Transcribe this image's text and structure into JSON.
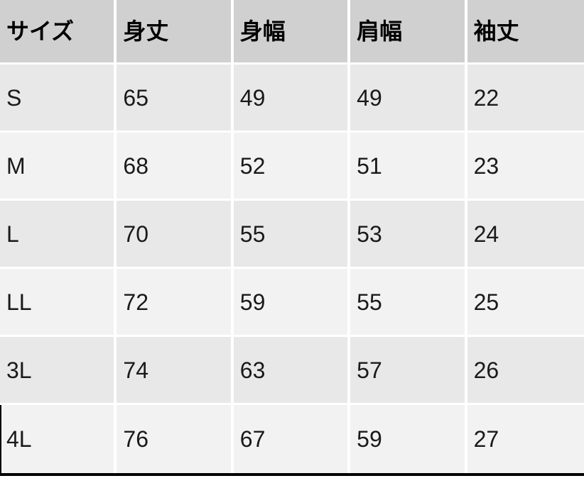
{
  "chart_data": {
    "type": "table",
    "columns": [
      "サイズ",
      "身丈",
      "身幅",
      "肩幅",
      "袖丈"
    ],
    "rows": [
      {
        "size": "S",
        "values": [
          65,
          49,
          49,
          22
        ]
      },
      {
        "size": "M",
        "values": [
          68,
          52,
          51,
          23
        ]
      },
      {
        "size": "L",
        "values": [
          70,
          55,
          53,
          24
        ]
      },
      {
        "size": "LL",
        "values": [
          72,
          59,
          55,
          25
        ]
      },
      {
        "size": "3L",
        "values": [
          74,
          63,
          57,
          26
        ]
      },
      {
        "size": "4L",
        "values": [
          76,
          67,
          59,
          27
        ]
      }
    ]
  },
  "colors": {
    "header_bg": "#d0d0d0",
    "row_odd_bg": "#e8e8e8",
    "row_even_bg": "#f2f2f2",
    "separator": "#ffffff",
    "outer_border": "#000000",
    "text": "#1a1a1a"
  }
}
